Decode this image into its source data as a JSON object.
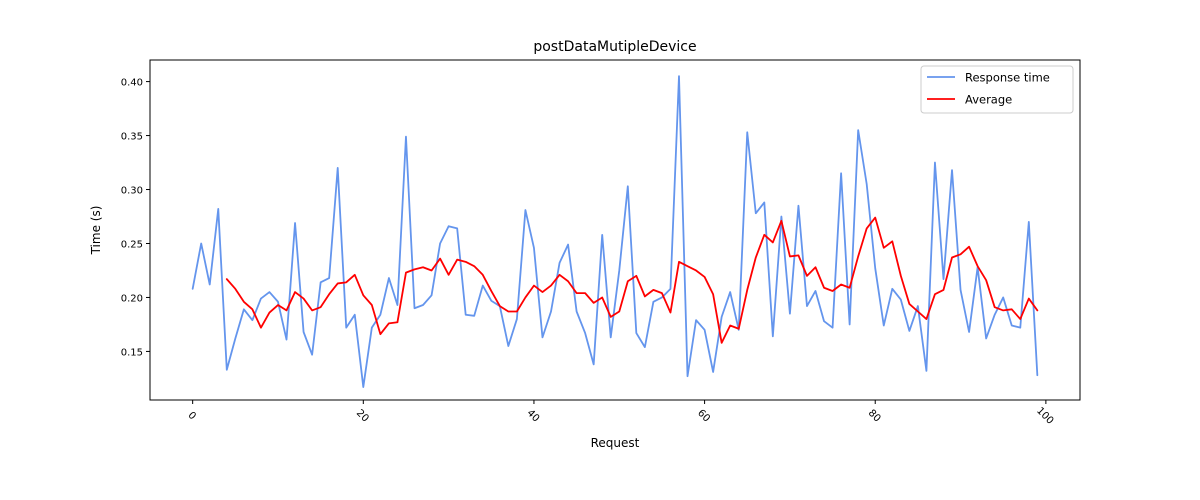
{
  "chart_data": {
    "type": "line",
    "title": "postDataMutipleDevice",
    "xlabel": "Request",
    "ylabel": "Time (s)",
    "xlim": [
      -5,
      104
    ],
    "ylim": [
      0.105,
      0.42
    ],
    "x_ticks": [
      0,
      20,
      40,
      60,
      80,
      100
    ],
    "y_ticks": [
      0.15,
      0.2,
      0.25,
      0.3,
      0.35,
      0.4
    ],
    "grid": false,
    "legend_position": "top-right",
    "series": [
      {
        "name": "Response time",
        "color": "#6495ed",
        "x_start": 0,
        "values": [
          0.208,
          0.25,
          0.212,
          0.282,
          0.133,
          0.162,
          0.189,
          0.179,
          0.199,
          0.205,
          0.196,
          0.161,
          0.269,
          0.168,
          0.147,
          0.214,
          0.218,
          0.32,
          0.172,
          0.184,
          0.117,
          0.172,
          0.184,
          0.218,
          0.193,
          0.349,
          0.19,
          0.193,
          0.202,
          0.25,
          0.266,
          0.264,
          0.184,
          0.183,
          0.211,
          0.197,
          0.192,
          0.155,
          0.18,
          0.281,
          0.246,
          0.163,
          0.187,
          0.232,
          0.249,
          0.187,
          0.167,
          0.138,
          0.258,
          0.163,
          0.225,
          0.303,
          0.167,
          0.154,
          0.196,
          0.2,
          0.208,
          0.405,
          0.127,
          0.179,
          0.17,
          0.131,
          0.182,
          0.205,
          0.17,
          0.353,
          0.278,
          0.288,
          0.164,
          0.275,
          0.185,
          0.285,
          0.192,
          0.206,
          0.178,
          0.172,
          0.315,
          0.175,
          0.355,
          0.305,
          0.227,
          0.174,
          0.208,
          0.198,
          0.169,
          0.192,
          0.132,
          0.325,
          0.217,
          0.318,
          0.207,
          0.168,
          0.228,
          0.162,
          0.184,
          0.2,
          0.174,
          0.172,
          0.27,
          0.128
        ]
      },
      {
        "name": "Average",
        "color": "#ff0000",
        "x_start": 4,
        "values": [
          0.217,
          0.208,
          0.196,
          0.189,
          0.172,
          0.186,
          0.193,
          0.188,
          0.205,
          0.199,
          0.188,
          0.191,
          0.203,
          0.213,
          0.214,
          0.221,
          0.202,
          0.193,
          0.166,
          0.176,
          0.177,
          0.223,
          0.226,
          0.228,
          0.225,
          0.236,
          0.221,
          0.235,
          0.233,
          0.229,
          0.221,
          0.206,
          0.192,
          0.187,
          0.187,
          0.2,
          0.211,
          0.205,
          0.211,
          0.221,
          0.215,
          0.204,
          0.204,
          0.195,
          0.2,
          0.182,
          0.187,
          0.215,
          0.22,
          0.201,
          0.207,
          0.204,
          0.186,
          0.233,
          0.229,
          0.225,
          0.219,
          0.203,
          0.158,
          0.174,
          0.171,
          0.207,
          0.237,
          0.258,
          0.251,
          0.271,
          0.238,
          0.239,
          0.22,
          0.228,
          0.209,
          0.206,
          0.212,
          0.209,
          0.238,
          0.264,
          0.274,
          0.246,
          0.252,
          0.22,
          0.194,
          0.187,
          0.18,
          0.203,
          0.207,
          0.237,
          0.24,
          0.247,
          0.229,
          0.216,
          0.191,
          0.188,
          0.189,
          0.18,
          0.199,
          0.188
        ]
      }
    ]
  }
}
